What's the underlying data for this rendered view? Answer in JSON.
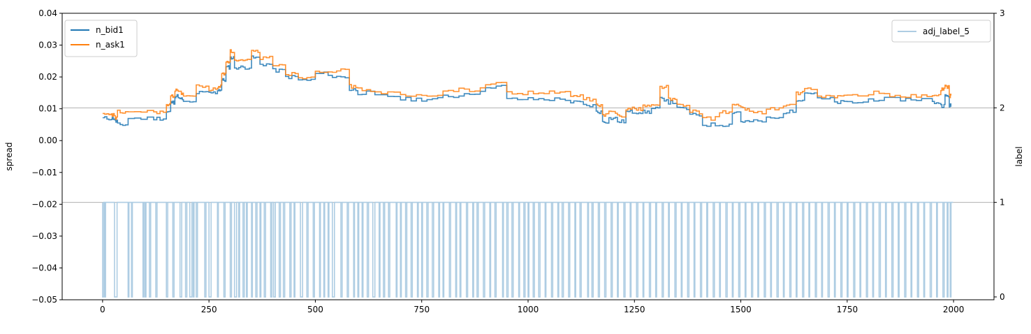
{
  "chart_data": {
    "type": "line",
    "xlim": [
      -95,
      2095
    ],
    "x_ticks": [
      0,
      250,
      500,
      750,
      1000,
      1250,
      1500,
      1750,
      2000
    ],
    "x_tick_labels": [
      "0",
      "250",
      "500",
      "750",
      "1000",
      "1250",
      "1500",
      "1750",
      "2000"
    ],
    "left_axis": {
      "label": "spread",
      "ylim": [
        -0.05,
        0.04
      ],
      "ticks": [
        -0.05,
        -0.04,
        -0.03,
        -0.02,
        -0.01,
        0.0,
        0.01,
        0.02,
        0.03,
        0.04
      ],
      "tick_labels": [
        "−0.05",
        "−0.04",
        "−0.03",
        "−0.02",
        "−0.01",
        "0.00",
        "0.01",
        "0.02",
        "0.03",
        "0.04"
      ]
    },
    "right_axis": {
      "label": "label",
      "ylim": [
        -0.03,
        3.0
      ],
      "ticks": [
        0,
        1,
        2,
        3
      ],
      "tick_labels": [
        "0",
        "1",
        "2",
        "3"
      ]
    },
    "right_gridlines": [
      1,
      2
    ],
    "grid_color": "#b0b0b0",
    "legend_left": {
      "placement": "upper-left",
      "entries": [
        "n_bid1",
        "n_ask1"
      ]
    },
    "legend_right": {
      "placement": "upper-right",
      "entries": [
        "adj_label_5"
      ]
    },
    "series": [
      {
        "name": "n_bid1",
        "axis": "left",
        "color": "#1f77b4",
        "x": [
          0,
          20,
          30,
          35,
          60,
          120,
          150,
          160,
          170,
          180,
          190,
          220,
          250,
          270,
          280,
          290,
          300,
          310,
          330,
          350,
          370,
          400,
          430,
          460,
          500,
          540,
          580,
          600,
          640,
          700,
          750,
          800,
          850,
          900,
          950,
          1000,
          1050,
          1100,
          1130,
          1160,
          1175,
          1190,
          1210,
          1230,
          1250,
          1270,
          1290,
          1310,
          1330,
          1350,
          1380,
          1410,
          1450,
          1480,
          1500,
          1520,
          1560,
          1600,
          1630,
          1650,
          1680,
          1720,
          1750,
          1800,
          1850,
          1900,
          1950,
          1970,
          1980,
          1990
        ],
        "values": [
          0.007,
          0.007,
          0.006,
          0.005,
          0.007,
          0.007,
          0.009,
          0.012,
          0.014,
          0.013,
          0.012,
          0.015,
          0.015,
          0.016,
          0.019,
          0.023,
          0.026,
          0.023,
          0.023,
          0.026,
          0.024,
          0.022,
          0.02,
          0.019,
          0.021,
          0.02,
          0.016,
          0.015,
          0.014,
          0.013,
          0.013,
          0.014,
          0.015,
          0.017,
          0.013,
          0.013,
          0.013,
          0.012,
          0.011,
          0.009,
          0.006,
          0.007,
          0.006,
          0.009,
          0.009,
          0.009,
          0.01,
          0.013,
          0.012,
          0.01,
          0.008,
          0.005,
          0.005,
          0.009,
          0.006,
          0.006,
          0.007,
          0.009,
          0.013,
          0.015,
          0.013,
          0.012,
          0.012,
          0.013,
          0.013,
          0.013,
          0.012,
          0.011,
          0.014,
          0.011
        ]
      },
      {
        "name": "n_ask1",
        "axis": "left",
        "color": "#ff7f0e",
        "x": [
          0,
          20,
          30,
          35,
          60,
          120,
          150,
          160,
          170,
          180,
          190,
          220,
          250,
          270,
          280,
          290,
          300,
          310,
          330,
          350,
          370,
          400,
          430,
          460,
          500,
          540,
          580,
          600,
          640,
          700,
          750,
          800,
          850,
          900,
          950,
          1000,
          1050,
          1100,
          1130,
          1160,
          1175,
          1190,
          1210,
          1230,
          1250,
          1270,
          1290,
          1310,
          1330,
          1350,
          1380,
          1410,
          1450,
          1480,
          1500,
          1520,
          1560,
          1600,
          1630,
          1650,
          1680,
          1720,
          1750,
          1800,
          1850,
          1900,
          1950,
          1970,
          1980,
          1990
        ],
        "values": [
          0.008,
          0.008,
          0.007,
          0.009,
          0.009,
          0.009,
          0.011,
          0.014,
          0.016,
          0.015,
          0.014,
          0.017,
          0.016,
          0.017,
          0.021,
          0.025,
          0.028,
          0.025,
          0.025,
          0.028,
          0.026,
          0.024,
          0.021,
          0.02,
          0.022,
          0.022,
          0.017,
          0.016,
          0.015,
          0.014,
          0.014,
          0.016,
          0.016,
          0.018,
          0.015,
          0.015,
          0.015,
          0.014,
          0.013,
          0.011,
          0.008,
          0.009,
          0.008,
          0.01,
          0.01,
          0.011,
          0.011,
          0.017,
          0.013,
          0.011,
          0.009,
          0.007,
          0.009,
          0.011,
          0.01,
          0.009,
          0.01,
          0.011,
          0.015,
          0.016,
          0.014,
          0.014,
          0.014,
          0.015,
          0.014,
          0.014,
          0.014,
          0.016,
          0.017,
          0.014
        ]
      }
    ],
    "label_series": {
      "name": "adj_label_5",
      "axis": "right",
      "color": "#aecde3",
      "high": 1,
      "low": 0,
      "x_range": [
        0,
        1999
      ],
      "low_intervals": [
        [
          0,
          3
        ],
        [
          5,
          7
        ],
        [
          28,
          34
        ],
        [
          60,
          62
        ],
        [
          68,
          70
        ],
        [
          95,
          97
        ],
        [
          100,
          102
        ],
        [
          110,
          113
        ],
        [
          125,
          128
        ],
        [
          150,
          153
        ],
        [
          165,
          168
        ],
        [
          182,
          186
        ],
        [
          195,
          198
        ],
        [
          205,
          210
        ],
        [
          213,
          215
        ],
        [
          220,
          223
        ],
        [
          240,
          243
        ],
        [
          250,
          255
        ],
        [
          270,
          272
        ],
        [
          285,
          288
        ],
        [
          300,
          303
        ],
        [
          310,
          315
        ],
        [
          320,
          322
        ],
        [
          330,
          333
        ],
        [
          338,
          340
        ],
        [
          350,
          352
        ],
        [
          360,
          363
        ],
        [
          370,
          372
        ],
        [
          380,
          383
        ],
        [
          395,
          398
        ],
        [
          402,
          406
        ],
        [
          415,
          418
        ],
        [
          425,
          428
        ],
        [
          440,
          443
        ],
        [
          450,
          452
        ],
        [
          465,
          470
        ],
        [
          480,
          483
        ],
        [
          495,
          498
        ],
        [
          510,
          512
        ],
        [
          520,
          522
        ],
        [
          530,
          532
        ],
        [
          540,
          545
        ],
        [
          560,
          563
        ],
        [
          575,
          578
        ],
        [
          590,
          592
        ],
        [
          600,
          602
        ],
        [
          610,
          612
        ],
        [
          622,
          625
        ],
        [
          635,
          640
        ],
        [
          650,
          652
        ],
        [
          660,
          663
        ],
        [
          672,
          675
        ],
        [
          690,
          692
        ],
        [
          700,
          702
        ],
        [
          712,
          715
        ],
        [
          725,
          728
        ],
        [
          740,
          742
        ],
        [
          750,
          752
        ],
        [
          762,
          765
        ],
        [
          775,
          778
        ],
        [
          790,
          792
        ],
        [
          800,
          802
        ],
        [
          815,
          818
        ],
        [
          830,
          832
        ],
        [
          840,
          842
        ],
        [
          855,
          858
        ],
        [
          870,
          872
        ],
        [
          880,
          883
        ],
        [
          895,
          898
        ],
        [
          910,
          912
        ],
        [
          922,
          925
        ],
        [
          940,
          942
        ],
        [
          950,
          953
        ],
        [
          962,
          965
        ],
        [
          978,
          980
        ],
        [
          990,
          993
        ],
        [
          1000,
          1002
        ],
        [
          1012,
          1015
        ],
        [
          1025,
          1028
        ],
        [
          1040,
          1042
        ],
        [
          1055,
          1058
        ],
        [
          1070,
          1072
        ],
        [
          1080,
          1083
        ],
        [
          1095,
          1098
        ],
        [
          1110,
          1112
        ],
        [
          1122,
          1125
        ],
        [
          1140,
          1142
        ],
        [
          1150,
          1153
        ],
        [
          1165,
          1168
        ],
        [
          1180,
          1183
        ],
        [
          1195,
          1198
        ],
        [
          1210,
          1212
        ],
        [
          1225,
          1228
        ],
        [
          1240,
          1242
        ],
        [
          1255,
          1258
        ],
        [
          1270,
          1272
        ],
        [
          1285,
          1288
        ],
        [
          1300,
          1302
        ],
        [
          1315,
          1318
        ],
        [
          1330,
          1332
        ],
        [
          1345,
          1348
        ],
        [
          1360,
          1362
        ],
        [
          1375,
          1378
        ],
        [
          1390,
          1392
        ],
        [
          1405,
          1408
        ],
        [
          1420,
          1422
        ],
        [
          1435,
          1438
        ],
        [
          1450,
          1452
        ],
        [
          1465,
          1468
        ],
        [
          1480,
          1482
        ],
        [
          1495,
          1498
        ],
        [
          1510,
          1512
        ],
        [
          1525,
          1528
        ],
        [
          1540,
          1542
        ],
        [
          1555,
          1558
        ],
        [
          1570,
          1572
        ],
        [
          1585,
          1588
        ],
        [
          1600,
          1602
        ],
        [
          1615,
          1618
        ],
        [
          1630,
          1632
        ],
        [
          1645,
          1648
        ],
        [
          1660,
          1662
        ],
        [
          1675,
          1678
        ],
        [
          1690,
          1692
        ],
        [
          1705,
          1708
        ],
        [
          1720,
          1722
        ],
        [
          1735,
          1738
        ],
        [
          1750,
          1752
        ],
        [
          1765,
          1768
        ],
        [
          1780,
          1782
        ],
        [
          1795,
          1798
        ],
        [
          1810,
          1812
        ],
        [
          1825,
          1828
        ],
        [
          1840,
          1842
        ],
        [
          1855,
          1858
        ],
        [
          1870,
          1872
        ],
        [
          1885,
          1888
        ],
        [
          1900,
          1902
        ],
        [
          1915,
          1918
        ],
        [
          1930,
          1932
        ],
        [
          1945,
          1948
        ],
        [
          1960,
          1962
        ],
        [
          1975,
          1978
        ],
        [
          1985,
          1987
        ],
        [
          1992,
          1994
        ]
      ]
    }
  }
}
